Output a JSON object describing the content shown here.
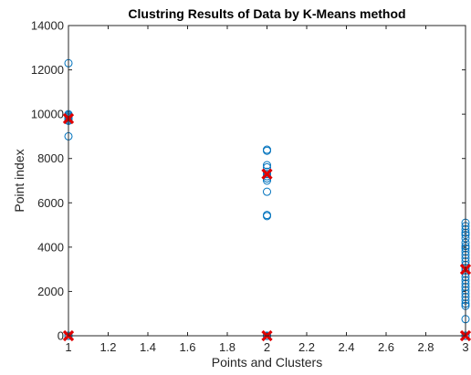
{
  "chart_data": {
    "type": "scatter",
    "title": "Clustring Results of Data by K-Means method",
    "xlabel": "Points and Clusters",
    "ylabel": "Point index",
    "xlim": [
      1,
      3
    ],
    "ylim": [
      0,
      14000
    ],
    "xticks": [
      1,
      1.2,
      1.4,
      1.6,
      1.8,
      2,
      2.2,
      2.4,
      2.6,
      2.8,
      3
    ],
    "xtick_labels": [
      "1",
      "1.2",
      "1.4",
      "1.6",
      "1.8",
      "2",
      "2.2",
      "2.4",
      "2.6",
      "2.8",
      "3"
    ],
    "yticks": [
      0,
      2000,
      4000,
      6000,
      8000,
      10000,
      12000,
      14000
    ],
    "ytick_labels": [
      "0",
      "2000",
      "4000",
      "6000",
      "8000",
      "10000",
      "12000",
      "14000"
    ],
    "grid": false,
    "box": true,
    "series": [
      {
        "marker": "circle-open",
        "color": "#0072BD",
        "points": [
          [
            1,
            12300
          ],
          [
            1,
            10000
          ],
          [
            1,
            9950
          ],
          [
            1,
            9900
          ],
          [
            1,
            9850
          ],
          [
            1,
            9800
          ],
          [
            1,
            9750
          ],
          [
            1,
            9700
          ],
          [
            1,
            9000
          ],
          [
            1,
            0
          ],
          [
            1,
            0
          ],
          [
            1,
            0
          ],
          [
            2,
            8400
          ],
          [
            2,
            8350
          ],
          [
            2,
            7700
          ],
          [
            2,
            7600
          ],
          [
            2,
            7400
          ],
          [
            2,
            7300
          ],
          [
            2,
            7200
          ],
          [
            2,
            7100
          ],
          [
            2,
            7000
          ],
          [
            2,
            6500
          ],
          [
            2,
            5450
          ],
          [
            2,
            5400
          ],
          [
            2,
            0
          ],
          [
            2,
            0
          ],
          [
            2,
            0
          ],
          [
            3,
            5100
          ],
          [
            3,
            4950
          ],
          [
            3,
            4800
          ],
          [
            3,
            4650
          ],
          [
            3,
            4550
          ],
          [
            3,
            4400
          ],
          [
            3,
            4200
          ],
          [
            3,
            4050
          ],
          [
            3,
            3950
          ],
          [
            3,
            3800
          ],
          [
            3,
            3650
          ],
          [
            3,
            3500
          ],
          [
            3,
            3350
          ],
          [
            3,
            3200
          ],
          [
            3,
            3050
          ],
          [
            3,
            2950
          ],
          [
            3,
            2800
          ],
          [
            3,
            2650
          ],
          [
            3,
            2500
          ],
          [
            3,
            2350
          ],
          [
            3,
            2200
          ],
          [
            3,
            2050
          ],
          [
            3,
            1900
          ],
          [
            3,
            1750
          ],
          [
            3,
            1600
          ],
          [
            3,
            1450
          ],
          [
            3,
            1350
          ],
          [
            3,
            750
          ],
          [
            3,
            0
          ],
          [
            3,
            0
          ],
          [
            3,
            0
          ]
        ]
      },
      {
        "marker": "x",
        "color": "#E00000",
        "points": [
          [
            1,
            9800
          ],
          [
            1,
            0
          ],
          [
            2,
            7300
          ],
          [
            2,
            0
          ],
          [
            3,
            3000
          ],
          [
            3,
            0
          ]
        ]
      }
    ]
  }
}
